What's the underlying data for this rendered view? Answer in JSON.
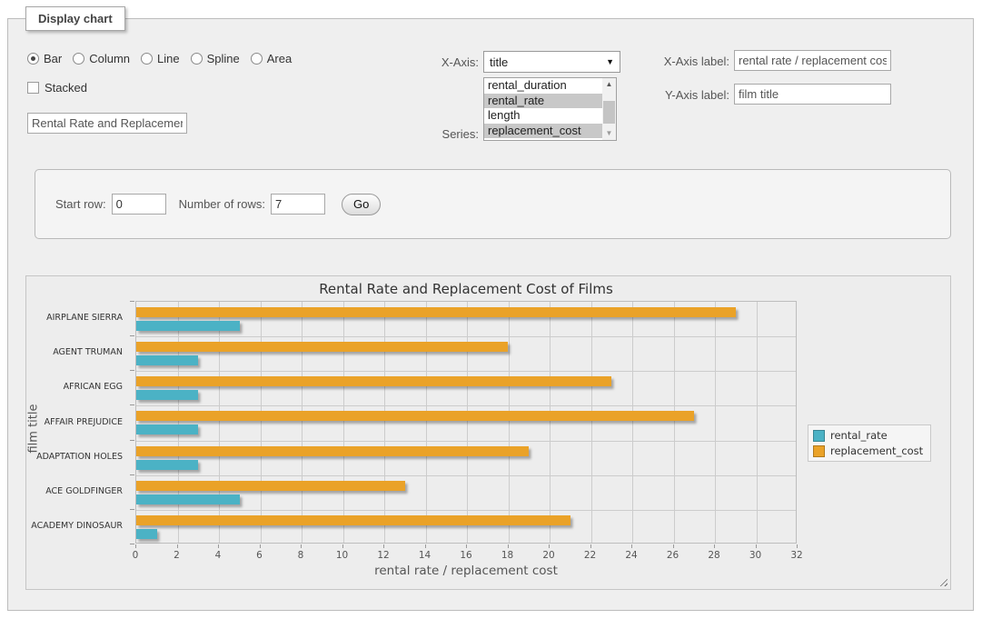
{
  "fieldset": {
    "legend": "Display chart"
  },
  "chart_type": {
    "options": [
      {
        "label": "Bar",
        "selected": true
      },
      {
        "label": "Column",
        "selected": false
      },
      {
        "label": "Line",
        "selected": false
      },
      {
        "label": "Spline",
        "selected": false
      },
      {
        "label": "Area",
        "selected": false
      }
    ]
  },
  "stacked": {
    "label": "Stacked",
    "checked": false
  },
  "chart_title_input": {
    "value": "Rental Rate and Replacement Cost of Films"
  },
  "x_axis_select": {
    "label": "X-Axis:",
    "value": "title"
  },
  "series_select": {
    "label": "Series:",
    "visible_options": [
      {
        "label": "rental_duration",
        "selected": false
      },
      {
        "label": "rental_rate",
        "selected": true
      },
      {
        "label": "length",
        "selected": false
      },
      {
        "label": "replacement_cost",
        "selected": true
      }
    ]
  },
  "x_axis_label_input": {
    "label": "X-Axis label:",
    "value": "rental rate / replacement cost"
  },
  "y_axis_label_input": {
    "label": "Y-Axis label:",
    "value": "film title"
  },
  "row_controls": {
    "start_row_label": "Start row:",
    "start_row_value": "0",
    "number_of_rows_label": "Number of rows:",
    "number_of_rows_value": "7",
    "go_button_label": "Go"
  },
  "chart_data": {
    "type": "bar",
    "orientation": "horizontal",
    "title": "Rental Rate and Replacement Cost of Films",
    "xlabel": "rental rate / replacement cost",
    "ylabel": "film title",
    "categories": [
      "AIRPLANE SIERRA",
      "AGENT TRUMAN",
      "AFRICAN EGG",
      "AFFAIR PREJUDICE",
      "ADAPTATION HOLES",
      "ACE GOLDFINGER",
      "ACADEMY DINOSAUR"
    ],
    "series": [
      {
        "name": "rental_rate",
        "color": "#4bb2c5",
        "values": [
          4.99,
          2.99,
          2.99,
          2.99,
          2.99,
          4.99,
          0.99
        ]
      },
      {
        "name": "replacement_cost",
        "color": "#eaa228",
        "values": [
          28.99,
          17.99,
          22.99,
          26.99,
          18.99,
          12.99,
          20.99
        ]
      }
    ],
    "xlim": [
      0,
      32
    ],
    "xtick_step": 2,
    "grid": true,
    "legend_position": "right"
  }
}
